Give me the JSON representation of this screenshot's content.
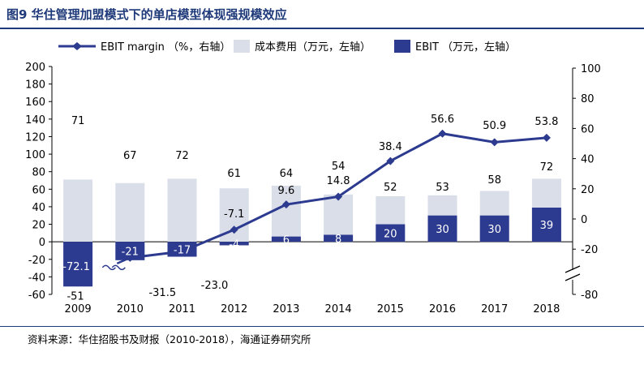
{
  "figure": {
    "title": "图9  华住管理加盟模式下的单店模型体现强规模效应",
    "source": "资料来源：华住招股书及财报（2010-2018），海通证券研究所"
  },
  "colors": {
    "cost_bar": "#d9dee9",
    "ebit_bar": "#2c3a8f",
    "margin_line": "#2c3a8f",
    "title": "#1f3a7a"
  },
  "chart_data": {
    "type": "bar",
    "categories": [
      "2009",
      "2010",
      "2011",
      "2012",
      "2013",
      "2014",
      "2015",
      "2016",
      "2017",
      "2018"
    ],
    "series": [
      {
        "name": "成本费用（万元，左轴）",
        "kind": "bar",
        "axis": "left",
        "values": [
          71,
          67,
          72,
          61,
          64,
          54,
          52,
          53,
          58,
          72
        ],
        "labels": [
          "71",
          "67",
          "72",
          "61",
          "64",
          "54",
          "52",
          "53",
          "58",
          "72"
        ]
      },
      {
        "name": "EBIT（万元，左轴）",
        "kind": "bar",
        "axis": "left",
        "values": [
          -51,
          -21,
          -17,
          -4,
          6,
          8,
          20,
          30,
          30,
          39
        ],
        "labels": [
          "-51",
          "-21",
          "-17",
          "-4",
          "6",
          "8",
          "20",
          "30",
          "30",
          "39"
        ]
      },
      {
        "name": "EBIT margin（%，右轴）",
        "kind": "line",
        "axis": "right",
        "values": [
          -72.1,
          -31.5,
          -23.0,
          -7.1,
          9.6,
          14.8,
          38.4,
          56.6,
          50.9,
          53.8
        ],
        "labels": [
          "-72.1",
          "-31.5",
          "-23.0",
          "-7.1",
          "9.6",
          "14.8",
          "38.4",
          "56.6",
          "50.9",
          "53.8"
        ]
      }
    ],
    "left_axis": {
      "ticks": [
        200,
        180,
        160,
        140,
        120,
        100,
        80,
        60,
        40,
        20,
        0,
        -20,
        -40,
        -60
      ],
      "range": [
        -60,
        200
      ]
    },
    "right_axis": {
      "ticks": [
        100,
        80,
        60,
        40,
        20,
        0,
        -20,
        -80
      ],
      "range": [
        -80,
        100
      ],
      "broken": true,
      "break_between": [
        -80,
        -20
      ]
    },
    "legend_position": "top",
    "grid": false
  }
}
